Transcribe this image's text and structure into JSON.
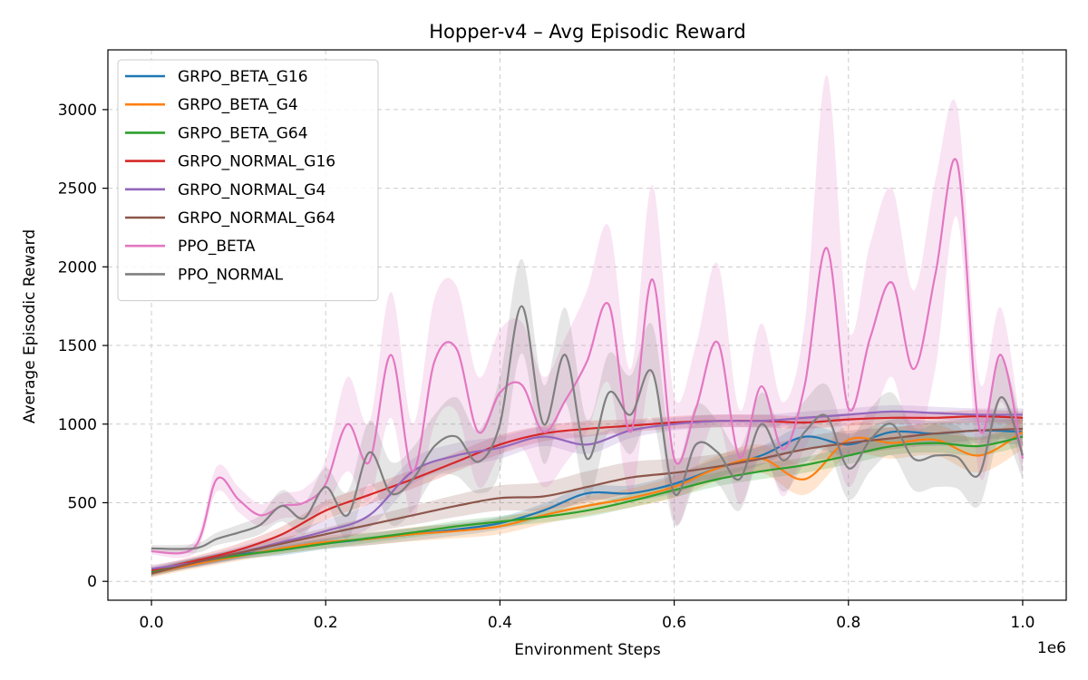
{
  "chart_data": {
    "type": "line",
    "title": "Hopper-v4 – Avg Episodic Reward",
    "xlabel": "Environment Steps",
    "ylabel": "Average Episodic Reward",
    "x_offset_label": "1e6",
    "xlim": [
      -0.05,
      1.05
    ],
    "ylim": [
      -120,
      3380
    ],
    "x_ticks": [
      0.0,
      0.2,
      0.4,
      0.6,
      0.8,
      1.0
    ],
    "x_tick_labels": [
      "0.0",
      "0.2",
      "0.4",
      "0.6",
      "0.8",
      "1.0"
    ],
    "y_ticks": [
      0,
      500,
      1000,
      1500,
      2000,
      2500,
      3000
    ],
    "y_tick_labels": [
      "0",
      "500",
      "1000",
      "1500",
      "2000",
      "2500",
      "3000"
    ],
    "grid": true,
    "legend_position": "top-left",
    "series": [
      {
        "name": "GRPO_BETA_G16",
        "color": "#1f77b4",
        "x": [
          0.0,
          0.05,
          0.1,
          0.15,
          0.2,
          0.25,
          0.3,
          0.35,
          0.4,
          0.45,
          0.5,
          0.55,
          0.6,
          0.65,
          0.7,
          0.75,
          0.8,
          0.85,
          0.9,
          0.95,
          1.0
        ],
        "y": [
          60,
          120,
          170,
          200,
          240,
          270,
          300,
          330,
          370,
          450,
          560,
          560,
          620,
          720,
          800,
          920,
          870,
          950,
          940,
          960,
          950
        ],
        "band": [
          25,
          30,
          30,
          35,
          35,
          40,
          40,
          40,
          40,
          45,
          45,
          50,
          60,
          60,
          60,
          70,
          70,
          80,
          80,
          80,
          80
        ]
      },
      {
        "name": "GRPO_BETA_G4",
        "color": "#ff7f0e",
        "x": [
          0.0,
          0.05,
          0.1,
          0.15,
          0.2,
          0.25,
          0.3,
          0.35,
          0.4,
          0.45,
          0.5,
          0.55,
          0.6,
          0.65,
          0.7,
          0.75,
          0.8,
          0.85,
          0.9,
          0.95,
          1.0
        ],
        "y": [
          50,
          110,
          160,
          210,
          250,
          270,
          300,
          320,
          350,
          420,
          480,
          530,
          600,
          720,
          780,
          650,
          900,
          880,
          900,
          800,
          950
        ],
        "band": [
          25,
          30,
          30,
          35,
          40,
          40,
          45,
          45,
          50,
          55,
          60,
          60,
          70,
          80,
          90,
          100,
          100,
          100,
          100,
          110,
          110
        ]
      },
      {
        "name": "GRPO_BETA_G64",
        "color": "#2ca02c",
        "x": [
          0.0,
          0.05,
          0.1,
          0.15,
          0.2,
          0.25,
          0.3,
          0.35,
          0.4,
          0.45,
          0.5,
          0.55,
          0.6,
          0.65,
          0.7,
          0.75,
          0.8,
          0.85,
          0.9,
          0.95,
          1.0
        ],
        "y": [
          60,
          120,
          165,
          200,
          240,
          275,
          310,
          350,
          380,
          410,
          450,
          510,
          580,
          650,
          700,
          740,
          800,
          860,
          880,
          860,
          920
        ],
        "band": [
          20,
          25,
          25,
          25,
          30,
          30,
          30,
          35,
          35,
          35,
          40,
          40,
          45,
          45,
          50,
          50,
          55,
          55,
          60,
          60,
          60
        ]
      },
      {
        "name": "GRPO_NORMAL_G16",
        "color": "#d62728",
        "x": [
          0.0,
          0.05,
          0.1,
          0.15,
          0.2,
          0.25,
          0.3,
          0.35,
          0.4,
          0.45,
          0.5,
          0.55,
          0.6,
          0.65,
          0.7,
          0.75,
          0.8,
          0.85,
          0.9,
          0.95,
          1.0
        ],
        "y": [
          70,
          130,
          200,
          300,
          450,
          550,
          650,
          760,
          870,
          940,
          970,
          990,
          1010,
          1020,
          1020,
          1010,
          1030,
          1040,
          1040,
          1050,
          1040
        ],
        "band": [
          25,
          30,
          40,
          50,
          60,
          60,
          60,
          60,
          60,
          50,
          50,
          40,
          40,
          40,
          40,
          40,
          40,
          40,
          40,
          40,
          40
        ]
      },
      {
        "name": "GRPO_NORMAL_G4",
        "color": "#9467bd",
        "x": [
          0.0,
          0.05,
          0.1,
          0.15,
          0.2,
          0.25,
          0.3,
          0.35,
          0.4,
          0.45,
          0.5,
          0.55,
          0.6,
          0.65,
          0.7,
          0.75,
          0.8,
          0.85,
          0.9,
          0.95,
          1.0
        ],
        "y": [
          80,
          120,
          180,
          250,
          320,
          420,
          700,
          800,
          850,
          920,
          870,
          960,
          1000,
          1020,
          1020,
          1040,
          1060,
          1080,
          1070,
          1060,
          1060
        ],
        "band": [
          25,
          30,
          40,
          50,
          70,
          80,
          80,
          80,
          70,
          60,
          60,
          50,
          40,
          40,
          40,
          40,
          40,
          40,
          40,
          40,
          40
        ]
      },
      {
        "name": "GRPO_NORMAL_G64",
        "color": "#8c564b",
        "x": [
          0.0,
          0.05,
          0.1,
          0.15,
          0.2,
          0.25,
          0.3,
          0.35,
          0.4,
          0.45,
          0.5,
          0.55,
          0.6,
          0.65,
          0.7,
          0.75,
          0.8,
          0.85,
          0.9,
          0.95,
          1.0
        ],
        "y": [
          50,
          120,
          180,
          240,
          300,
          360,
          420,
          480,
          530,
          540,
          600,
          660,
          690,
          730,
          780,
          840,
          880,
          910,
          940,
          960,
          970
        ],
        "band": [
          20,
          25,
          30,
          35,
          40,
          50,
          60,
          70,
          80,
          90,
          100,
          100,
          90,
          80,
          80,
          80,
          80,
          70,
          70,
          60,
          60
        ]
      },
      {
        "name": "PPO_BETA",
        "color": "#e377c2",
        "x": [
          0.0,
          0.05,
          0.075,
          0.1,
          0.125,
          0.15,
          0.175,
          0.2,
          0.225,
          0.25,
          0.275,
          0.3,
          0.325,
          0.35,
          0.375,
          0.4,
          0.425,
          0.45,
          0.475,
          0.5,
          0.525,
          0.55,
          0.575,
          0.6,
          0.625,
          0.65,
          0.675,
          0.7,
          0.725,
          0.75,
          0.775,
          0.8,
          0.825,
          0.85,
          0.875,
          0.9,
          0.925,
          0.95,
          0.975,
          1.0
        ],
        "y": [
          190,
          220,
          650,
          520,
          420,
          480,
          500,
          620,
          1000,
          760,
          1440,
          700,
          1400,
          1480,
          950,
          1200,
          1250,
          950,
          1150,
          1400,
          1760,
          950,
          1920,
          780,
          1100,
          1520,
          790,
          1240,
          840,
          1250,
          2120,
          1100,
          1550,
          1900,
          1350,
          1960,
          2660,
          980,
          1440,
          780
        ],
        "band": [
          20,
          40,
          80,
          80,
          70,
          80,
          90,
          150,
          300,
          250,
          400,
          300,
          400,
          400,
          350,
          400,
          400,
          350,
          400,
          450,
          500,
          400,
          600,
          400,
          400,
          500,
          300,
          400,
          300,
          400,
          1100,
          500,
          600,
          600,
          500,
          600,
          350,
          300,
          300,
          100
        ]
      },
      {
        "name": "PPO_NORMAL",
        "color": "#7f7f7f",
        "x": [
          0.0,
          0.05,
          0.075,
          0.1,
          0.125,
          0.15,
          0.175,
          0.2,
          0.225,
          0.25,
          0.275,
          0.3,
          0.325,
          0.35,
          0.375,
          0.4,
          0.425,
          0.45,
          0.475,
          0.5,
          0.525,
          0.55,
          0.575,
          0.6,
          0.625,
          0.65,
          0.675,
          0.7,
          0.725,
          0.75,
          0.775,
          0.8,
          0.825,
          0.85,
          0.875,
          0.9,
          0.925,
          0.95,
          0.975,
          1.0
        ],
        "y": [
          210,
          210,
          270,
          310,
          360,
          480,
          400,
          600,
          420,
          820,
          560,
          650,
          860,
          920,
          760,
          1000,
          1750,
          1000,
          1440,
          780,
          1200,
          1060,
          1330,
          560,
          870,
          820,
          650,
          1000,
          770,
          950,
          1050,
          720,
          900,
          1000,
          780,
          800,
          790,
          680,
          1170,
          800
        ],
        "band": [
          20,
          30,
          40,
          50,
          60,
          100,
          100,
          120,
          150,
          200,
          200,
          200,
          200,
          250,
          200,
          300,
          300,
          250,
          300,
          250,
          250,
          250,
          300,
          200,
          250,
          200,
          200,
          200,
          200,
          200,
          200,
          200,
          200,
          200,
          200,
          200,
          200,
          200,
          250,
          150
        ]
      }
    ]
  }
}
